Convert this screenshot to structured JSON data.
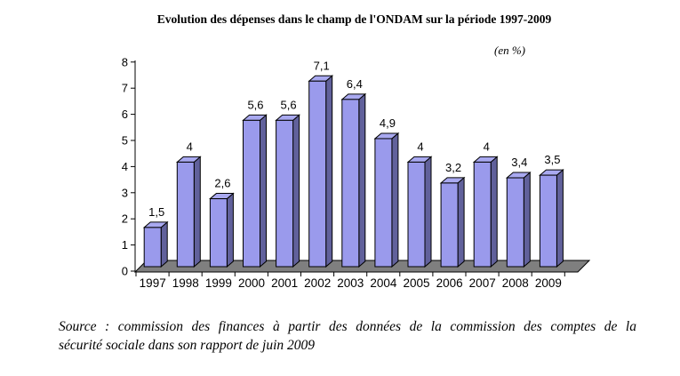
{
  "chart_data": {
    "type": "bar",
    "style": "3d-column",
    "title": "Evolution des dépenses dans le champ de l'ONDAM sur la période 1997-2009",
    "unit": "(en %)",
    "categories": [
      "1997",
      "1998",
      "1999",
      "2000",
      "2001",
      "2002",
      "2003",
      "2004",
      "2005",
      "2006",
      "2007",
      "2008",
      "2009"
    ],
    "values": [
      1.5,
      4,
      2.6,
      5.6,
      5.6,
      7.1,
      6.4,
      4.9,
      4,
      3.2,
      4,
      3.4,
      3.5
    ],
    "value_labels": [
      "1,5",
      "4",
      "2,6",
      "5,6",
      "5,6",
      "7,1",
      "6,4",
      "4,9",
      "4",
      "3,2",
      "4",
      "3,4",
      "3,5"
    ],
    "ylim": [
      0,
      8
    ],
    "ytick_step": 1,
    "grid": false,
    "legend": "none",
    "colors": {
      "bar_front": "#9A9AEC",
      "bar_top": "#A9A9F0",
      "bar_side": "#61619B",
      "bar_outline": "#000000",
      "floor": "#7F7F7F",
      "axis": "#000000",
      "text": "#000000"
    }
  },
  "source": {
    "line1": "Source : commission des finances à partir des données de la commission des comptes de la",
    "line2": "sécurité sociale dans son rapport de juin 2009"
  }
}
